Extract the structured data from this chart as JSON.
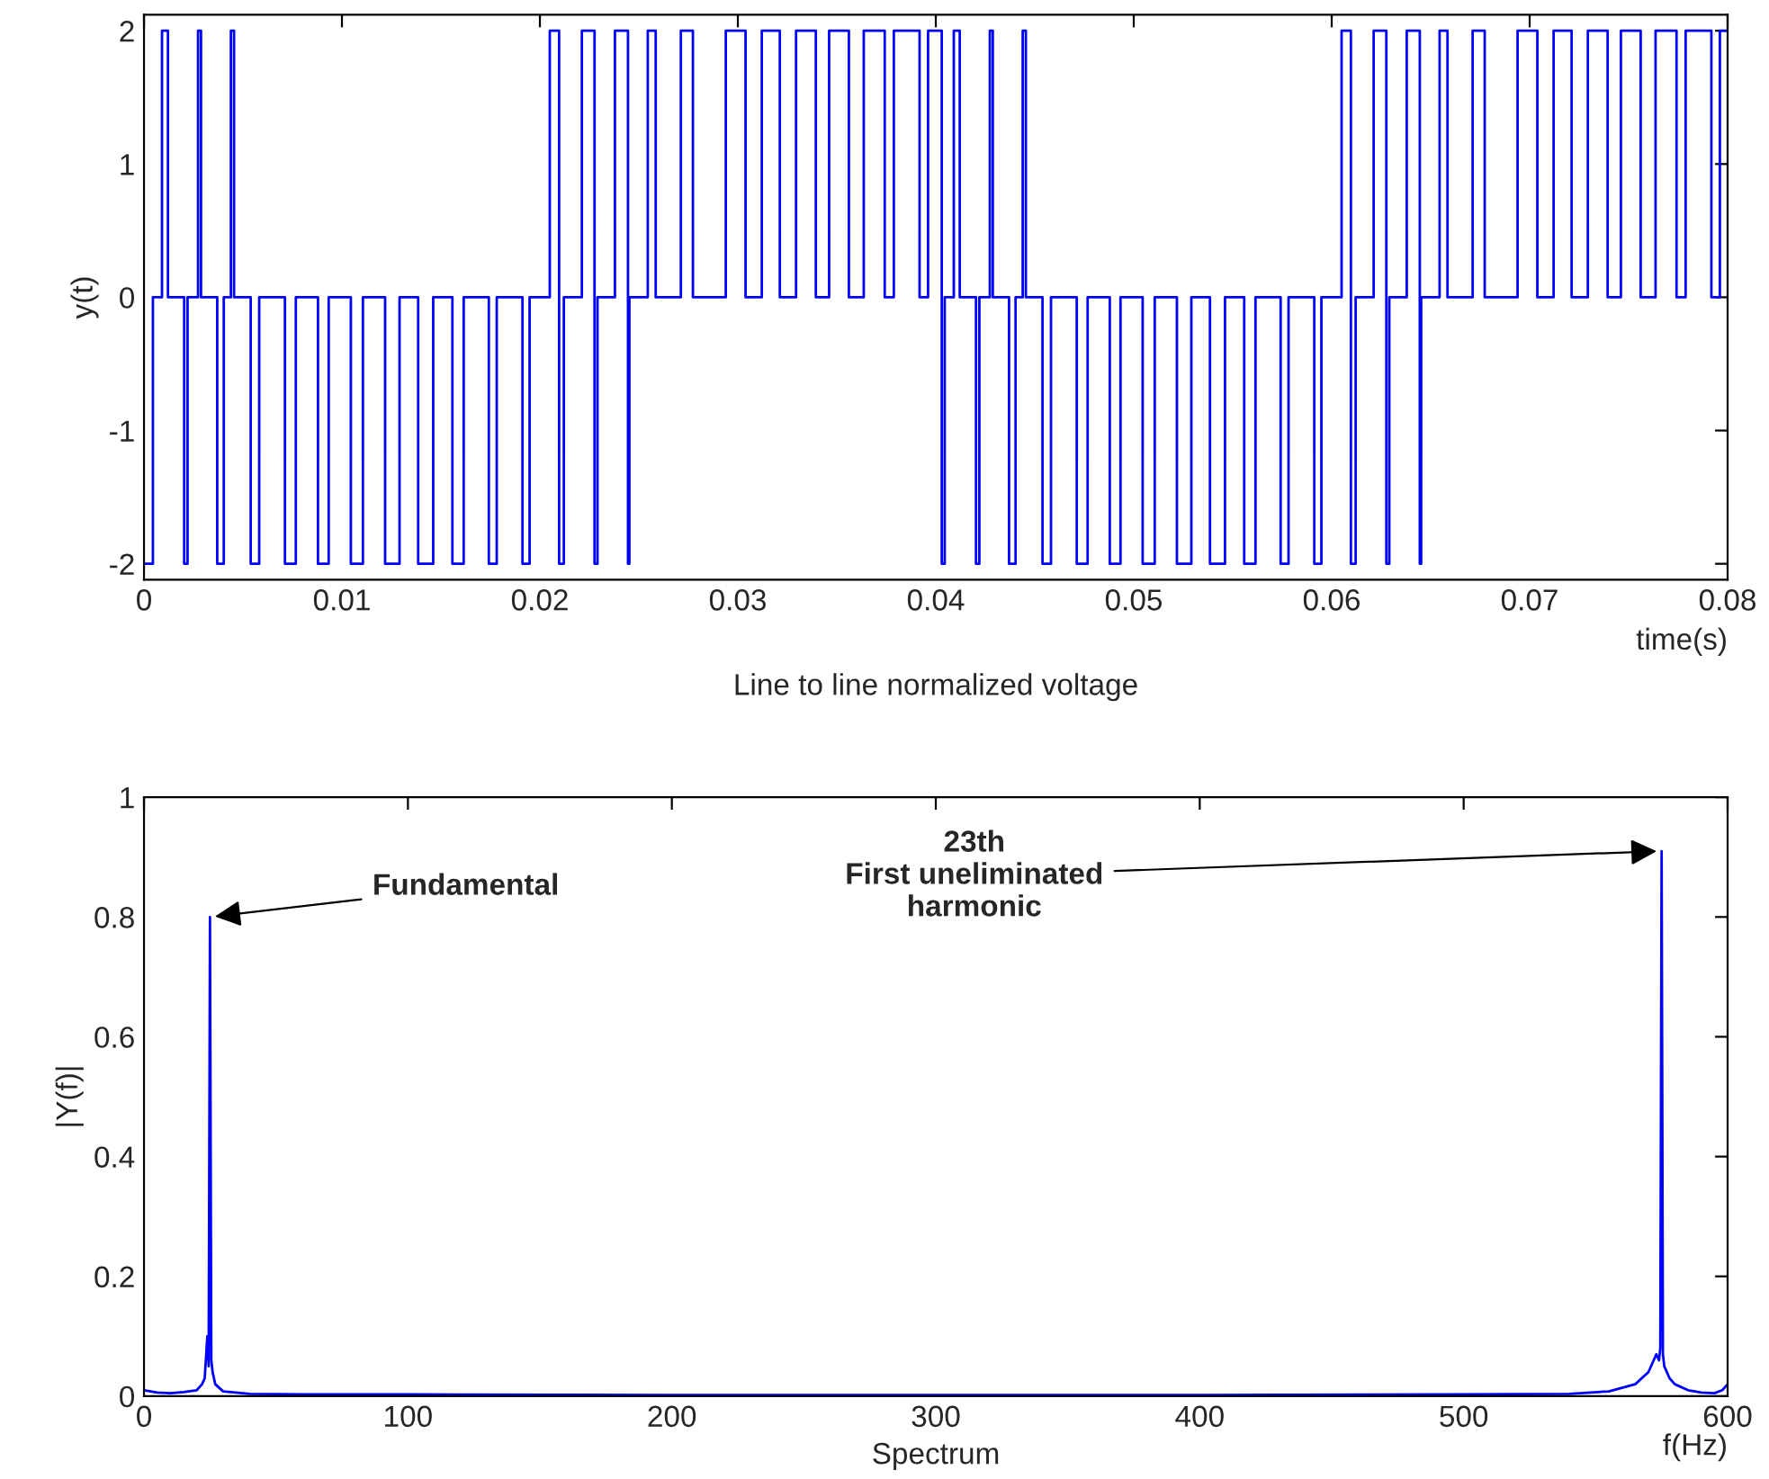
{
  "chart_data": [
    {
      "type": "step",
      "ylabel": "y(t)",
      "xlabel": "time(s)",
      "annotations": [
        "Line to line normalized voltage"
      ],
      "xlim": [
        0,
        0.08
      ],
      "xticks": [
        0,
        0.01,
        0.02,
        0.03,
        0.04,
        0.05,
        0.06,
        0.07,
        0.08
      ],
      "ylim": [
        -2.12,
        2.12
      ],
      "yticks": [
        -2,
        -1,
        0,
        1,
        2
      ],
      "grid": false,
      "legend": false,
      "series": [
        {
          "color": "#0000ff",
          "x": [
            0,
            0.00045,
            0.00091,
            0.00121,
            0.00203,
            0.0022,
            0.00273,
            0.00288,
            0.0037,
            0.00403,
            0.00439,
            0.00455,
            0.00539,
            0.00582,
            0.00712,
            0.00767,
            0.00879,
            0.00933,
            0.01045,
            0.01106,
            0.01218,
            0.01291,
            0.01385,
            0.01461,
            0.01558,
            0.01615,
            0.01742,
            0.01782,
            0.01912,
            0.01948,
            0.0205,
            0.02097,
            0.02121,
            0.02212,
            0.02276,
            0.02291,
            0.02379,
            0.02445,
            0.02452,
            0.02545,
            0.02585,
            0.02712,
            0.02773,
            0.02939,
            0.03039,
            0.03121,
            0.03212,
            0.03294,
            0.03394,
            0.03461,
            0.03561,
            0.03636,
            0.03742,
            0.03788,
            0.03918,
            0.03961,
            0.0403,
            0.04045,
            0.04091,
            0.04121,
            0.04203,
            0.0422,
            0.04273,
            0.04288,
            0.0437,
            0.04403,
            0.04439,
            0.04455,
            0.04539,
            0.04582,
            0.04712,
            0.04767,
            0.04879,
            0.04933,
            0.05045,
            0.05106,
            0.05218,
            0.05291,
            0.05385,
            0.05461,
            0.05558,
            0.05615,
            0.05742,
            0.05782,
            0.05912,
            0.05948,
            0.0605,
            0.06097,
            0.06121,
            0.06212,
            0.06276,
            0.06291,
            0.06379,
            0.06445,
            0.06452,
            0.06545,
            0.06585,
            0.06712,
            0.06773,
            0.06939,
            0.07039,
            0.07121,
            0.07212,
            0.07294,
            0.07394,
            0.07461,
            0.07561,
            0.07636,
            0.07742,
            0.07788,
            0.07918,
            0.07961,
            0.08
          ],
          "values": [
            -2,
            0,
            2,
            0,
            -2,
            0,
            2,
            0,
            -2,
            0,
            2,
            0,
            -2,
            0,
            -2,
            0,
            -2,
            0,
            -2,
            0,
            -2,
            0,
            -2,
            0,
            -2,
            0,
            -2,
            0,
            -2,
            0,
            2,
            -2,
            0,
            2,
            -2,
            0,
            2,
            -2,
            0,
            2,
            0,
            2,
            0,
            2,
            0,
            2,
            0,
            2,
            0,
            2,
            0,
            2,
            0,
            2,
            0,
            2,
            -2,
            0,
            2,
            0,
            -2,
            0,
            2,
            0,
            -2,
            0,
            2,
            0,
            -2,
            0,
            -2,
            0,
            -2,
            0,
            -2,
            0,
            -2,
            0,
            -2,
            0,
            -2,
            0,
            -2,
            0,
            -2,
            0,
            2,
            -2,
            0,
            2,
            -2,
            0,
            2,
            -2,
            0,
            2,
            0,
            2,
            0,
            2,
            0,
            2,
            0,
            2,
            0,
            2,
            0,
            2,
            0,
            2,
            0,
            2,
            2
          ]
        }
      ]
    },
    {
      "type": "line",
      "ylabel": "|Y(f)|",
      "xlabel": "f(Hz)",
      "annotations": [
        "Spectrum",
        {
          "text": "Fundamental",
          "x": 25,
          "y": 0.8
        },
        {
          "text": "23th\nFirst uneliminated\nharmonic",
          "x": 575,
          "y": 0.91
        }
      ],
      "xlim": [
        0,
        600
      ],
      "xticks": [
        0,
        100,
        200,
        300,
        400,
        500,
        600
      ],
      "ylim": [
        0,
        1
      ],
      "yticks": [
        0,
        0.2,
        0.4,
        0.6,
        0.8,
        1
      ],
      "grid": false,
      "legend": false,
      "series": [
        {
          "color": "#0000ff",
          "x": [
            0,
            5,
            10,
            15,
            20,
            22,
            23,
            24,
            24.5,
            25,
            25.5,
            26,
            27,
            30,
            40,
            60,
            100,
            200,
            300,
            400,
            500,
            540,
            555,
            565,
            570,
            572,
            573,
            574,
            574.5,
            575,
            575.5,
            576,
            578,
            580,
            585,
            590,
            595,
            598,
            600
          ],
          "values": [
            0.01,
            0.006,
            0.005,
            0.007,
            0.01,
            0.02,
            0.03,
            0.1,
            0.05,
            0.8,
            0.06,
            0.04,
            0.02,
            0.008,
            0.004,
            0.003,
            0.003,
            0.002,
            0.002,
            0.002,
            0.003,
            0.004,
            0.008,
            0.02,
            0.04,
            0.06,
            0.07,
            0.06,
            0.08,
            0.91,
            0.07,
            0.05,
            0.03,
            0.02,
            0.01,
            0.006,
            0.005,
            0.01,
            0.02
          ]
        }
      ]
    }
  ]
}
